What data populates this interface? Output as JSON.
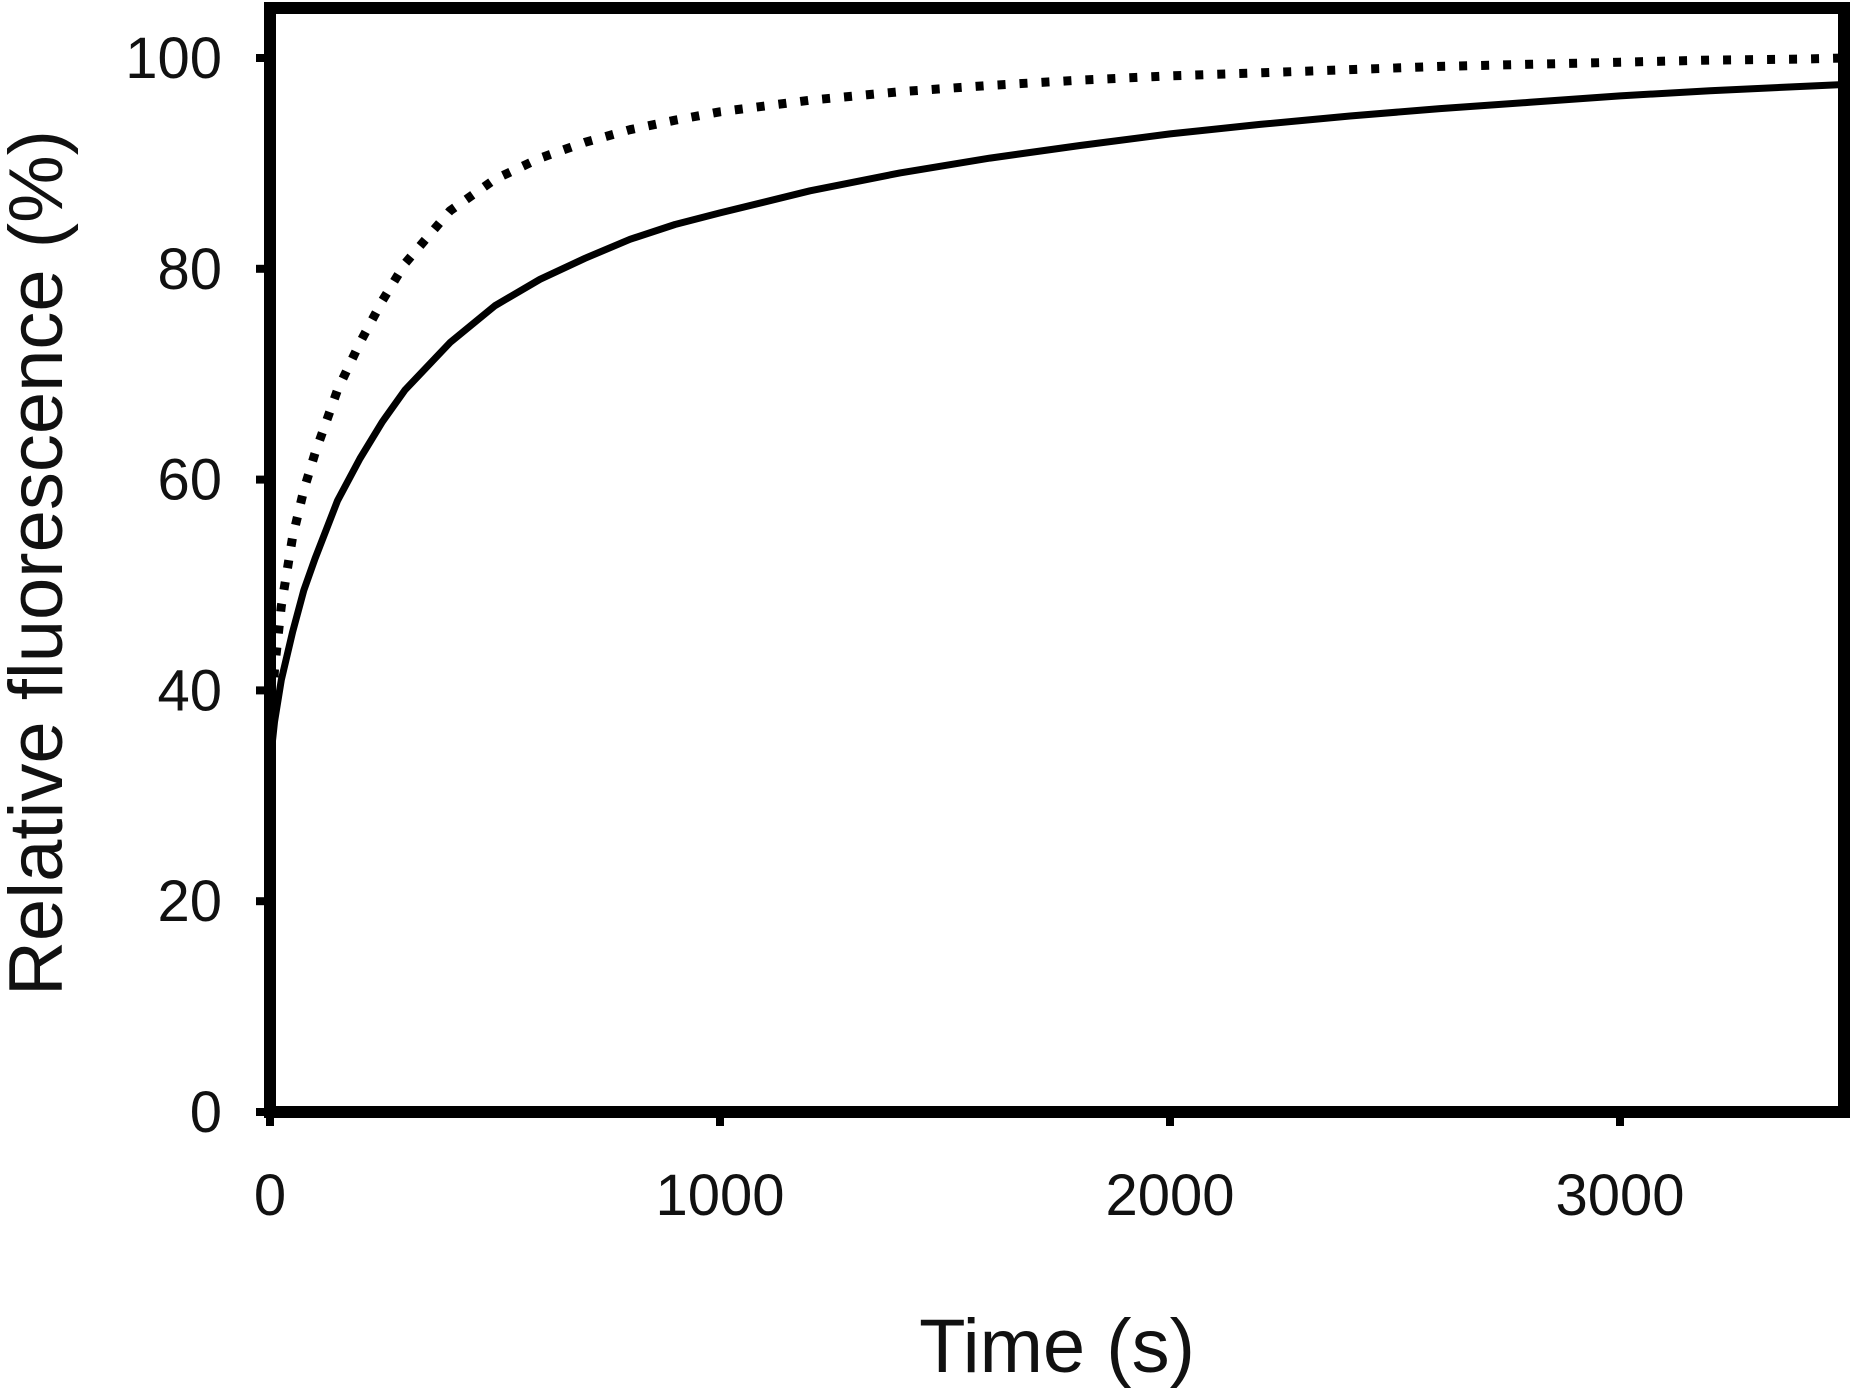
{
  "chart_data": {
    "type": "line",
    "title": "",
    "xlabel": "Time (s)",
    "ylabel": "Relative fluorescence (%)",
    "xlim": [
      0,
      3500
    ],
    "ylim": [
      0,
      105
    ],
    "xticks": [
      0,
      1000,
      2000,
      3000
    ],
    "yticks": [
      0,
      20,
      40,
      60,
      80,
      100
    ],
    "xtick_labels": [
      "0",
      "1000",
      "2000",
      "3000"
    ],
    "ytick_labels": [
      "0",
      "20",
      "40",
      "60",
      "80",
      "100"
    ],
    "grid": false,
    "legend": "none",
    "colors": {
      "series": "#000000",
      "axes": "#000000",
      "background": "#ffffff"
    },
    "series": [
      {
        "style": "solid",
        "x": [
          0,
          10,
          25,
          50,
          75,
          100,
          150,
          200,
          250,
          300,
          400,
          500,
          600,
          700,
          800,
          900,
          1000,
          1200,
          1400,
          1600,
          1800,
          2000,
          2200,
          2400,
          2600,
          2800,
          3000,
          3200,
          3400,
          3500
        ],
        "y": [
          33,
          37,
          41,
          45.5,
          49.5,
          52.5,
          58,
          62,
          65.5,
          68.5,
          73,
          76.5,
          79,
          81,
          82.8,
          84.2,
          85.3,
          87.4,
          89.1,
          90.5,
          91.7,
          92.8,
          93.7,
          94.5,
          95.2,
          95.8,
          96.4,
          96.9,
          97.3,
          97.5
        ]
      },
      {
        "style": "dotted",
        "x": [
          0,
          10,
          25,
          50,
          75,
          100,
          150,
          200,
          250,
          300,
          400,
          500,
          600,
          700,
          800,
          900,
          1000,
          1200,
          1400,
          1600,
          1800,
          2000,
          2200,
          2400,
          2600,
          2800,
          3000,
          3200,
          3400,
          3500
        ],
        "y": [
          35,
          42,
          48,
          54.5,
          59,
          62.5,
          68.5,
          73,
          77,
          80.5,
          85.5,
          88.5,
          90.5,
          92,
          93.2,
          94.1,
          94.9,
          96,
          96.8,
          97.4,
          97.9,
          98.3,
          98.6,
          98.9,
          99.2,
          99.4,
          99.6,
          99.8,
          99.9,
          100
        ]
      }
    ]
  }
}
